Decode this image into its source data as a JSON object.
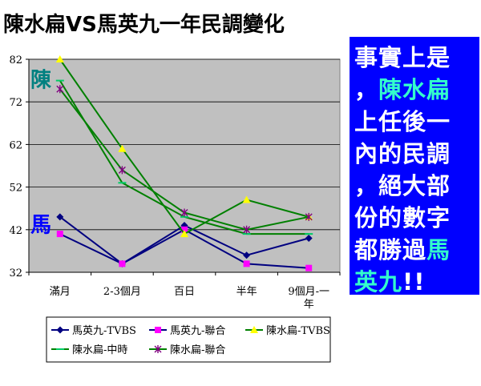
{
  "title": "陳水扁VS馬英九一年民調變化",
  "chart_data": {
    "type": "line",
    "categories": [
      "滿月",
      "2-3個月",
      "百日",
      "半年",
      "9個月-一年"
    ],
    "category_lines": [
      [
        "滿月"
      ],
      [
        "2-3個月"
      ],
      [
        "百日"
      ],
      [
        "半年"
      ],
      [
        "9個月-一",
        "年"
      ]
    ],
    "yticks": [
      32,
      42,
      52,
      62,
      72,
      82
    ],
    "ylim": [
      32,
      82
    ],
    "grid": true,
    "plot_bg": "#c0c0c0",
    "legend_position": "bottom",
    "series": [
      {
        "name": "馬英九-TVBS",
        "values": [
          45,
          34,
          43,
          36,
          40
        ],
        "color": "#000080",
        "marker": "diamond"
      },
      {
        "name": "馬英九-聯合",
        "values": [
          41,
          34,
          42,
          34,
          33
        ],
        "color": "#000080",
        "marker": "square",
        "marker_color": "#ff00ff"
      },
      {
        "name": "陳水扁-TVBS",
        "values": [
          82,
          61,
          41,
          49,
          45
        ],
        "color": "#008000",
        "marker": "triangle",
        "marker_color": "#ffff00"
      },
      {
        "name": "陳水扁-中時",
        "values": [
          77,
          53,
          45,
          41,
          41
        ],
        "color": "#008000",
        "marker": "dash",
        "marker_color": "#00cc66"
      },
      {
        "name": "陳水扁-聯合",
        "values": [
          75,
          56,
          46,
          42,
          45
        ],
        "color": "#008000",
        "marker": "star",
        "marker_color": "#800080"
      }
    ],
    "annotations": [
      {
        "text": "陳",
        "color": "#008080",
        "at_category": "滿月",
        "at_value": 77
      },
      {
        "text": "馬",
        "color": "#0000ff",
        "at_category": "滿月",
        "at_value": 43
      }
    ]
  },
  "callout": {
    "background": "#0000ff",
    "lines": [
      [
        {
          "text": "事實上是",
          "color": "#ffffff"
        }
      ],
      [
        {
          "text": "，",
          "color": "#ffffff"
        },
        {
          "text": "陳水扁",
          "color": "#33ffcc"
        }
      ],
      [
        {
          "text": "上任後一",
          "color": "#ffffff"
        }
      ],
      [
        {
          "text": "內的民調",
          "color": "#ffffff"
        }
      ],
      [
        {
          "text": "，絕大部",
          "color": "#ffffff"
        }
      ],
      [
        {
          "text": "份的數字",
          "color": "#ffffff"
        }
      ],
      [
        {
          "text": "都勝過",
          "color": "#ffffff"
        },
        {
          "text": "馬",
          "color": "#33ffcc"
        }
      ],
      [
        {
          "text": "英九",
          "color": "#33ffcc"
        },
        {
          "text": "!!",
          "color": "#ffffff"
        }
      ]
    ]
  }
}
